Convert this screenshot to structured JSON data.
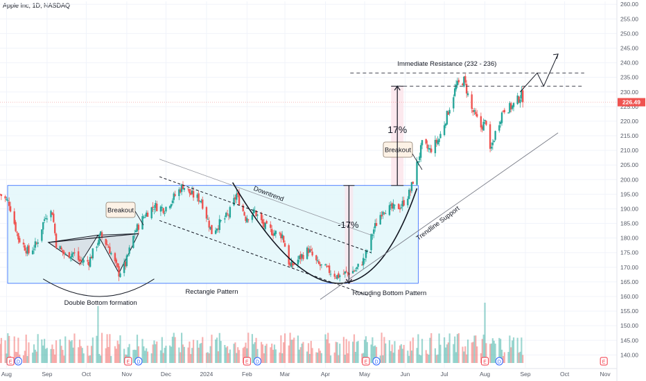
{
  "header": {
    "title": "Apple Inc, 1D, NASDAQ"
  },
  "colors": {
    "up": "#26a69a",
    "down": "#ef5350",
    "rectangle_fill": "#e3f7fa",
    "rectangle_border": "#2962ff",
    "price_badge": "#ef5350",
    "measure_band": "#fbe3ea",
    "callout_fill": "#fdf2e6"
  },
  "chart_data": {
    "type": "candlestick",
    "y_axis": {
      "min": 137,
      "max": 261,
      "ticks": [
        140,
        145,
        150,
        155,
        160,
        165,
        170,
        175,
        180,
        185,
        190,
        195,
        200,
        205,
        210,
        215,
        220,
        225,
        230,
        235,
        240,
        245,
        250,
        255,
        260
      ],
      "tick_labels": [
        "140.00",
        "145.00",
        "150.00",
        "155.00",
        "160.00",
        "165.00",
        "170.00",
        "175.00",
        "180.00",
        "185.00",
        "190.00",
        "195.00",
        "200.00",
        "205.00",
        "210.00",
        "215.00",
        "220.00",
        "225.00",
        "230.00",
        "235.00",
        "240.00",
        "245.00",
        "250.00",
        "255.00",
        "260.00"
      ]
    },
    "x_axis": {
      "start": "2023-07-27",
      "end": "2024-11-10",
      "labels": [
        {
          "date": "2023-08-01",
          "text": "Aug"
        },
        {
          "date": "2023-09-01",
          "text": "Sep"
        },
        {
          "date": "2023-10-01",
          "text": "Oct"
        },
        {
          "date": "2023-11-01",
          "text": "Nov"
        },
        {
          "date": "2023-12-01",
          "text": "Dec"
        },
        {
          "date": "2024-01-01",
          "text": "2024"
        },
        {
          "date": "2024-02-01",
          "text": "Feb"
        },
        {
          "date": "2024-03-01",
          "text": "Mar"
        },
        {
          "date": "2024-04-01",
          "text": "Apr"
        },
        {
          "date": "2024-05-01",
          "text": "May"
        },
        {
          "date": "2024-06-01",
          "text": "Jun"
        },
        {
          "date": "2024-07-01",
          "text": "Jul"
        },
        {
          "date": "2024-08-01",
          "text": "Aug"
        },
        {
          "date": "2024-09-01",
          "text": "Sep"
        },
        {
          "date": "2024-10-01",
          "text": "Oct"
        },
        {
          "date": "2024-11-01",
          "text": "Nov"
        }
      ]
    },
    "price_path": [
      [
        "2023-07-27",
        195
      ],
      [
        "2023-08-03",
        192
      ],
      [
        "2023-08-10",
        180
      ],
      [
        "2023-08-18",
        175
      ],
      [
        "2023-08-24",
        178
      ],
      [
        "2023-08-31",
        188
      ],
      [
        "2023-09-05",
        189
      ],
      [
        "2023-09-08",
        178
      ],
      [
        "2023-09-15",
        174
      ],
      [
        "2023-09-21",
        175
      ],
      [
        "2023-09-26",
        172
      ],
      [
        "2023-10-03",
        172
      ],
      [
        "2023-10-12",
        181
      ],
      [
        "2023-10-18",
        177
      ],
      [
        "2023-10-26",
        168
      ],
      [
        "2023-10-31",
        171
      ],
      [
        "2023-11-07",
        182
      ],
      [
        "2023-11-15",
        188
      ],
      [
        "2023-11-22",
        191
      ],
      [
        "2023-11-30",
        190
      ],
      [
        "2023-12-07",
        194
      ],
      [
        "2023-12-14",
        198
      ],
      [
        "2023-12-20",
        195
      ],
      [
        "2023-12-28",
        193
      ],
      [
        "2024-01-05",
        182
      ],
      [
        "2024-01-11",
        185
      ],
      [
        "2024-01-18",
        188
      ],
      [
        "2024-01-24",
        195
      ],
      [
        "2024-01-31",
        187
      ],
      [
        "2024-02-07",
        189
      ],
      [
        "2024-02-14",
        184
      ],
      [
        "2024-02-21",
        182
      ],
      [
        "2024-02-28",
        181
      ],
      [
        "2024-03-05",
        170
      ],
      [
        "2024-03-12",
        173
      ],
      [
        "2024-03-19",
        176
      ],
      [
        "2024-03-26",
        171
      ],
      [
        "2024-04-03",
        169
      ],
      [
        "2024-04-10",
        167
      ],
      [
        "2024-04-17",
        168
      ],
      [
        "2024-04-24",
        169
      ],
      [
        "2024-05-01",
        173
      ],
      [
        "2024-05-08",
        183
      ],
      [
        "2024-05-15",
        190
      ],
      [
        "2024-05-22",
        190
      ],
      [
        "2024-05-29",
        191
      ],
      [
        "2024-06-05",
        196
      ],
      [
        "2024-06-11",
        207
      ],
      [
        "2024-06-14",
        212
      ],
      [
        "2024-06-20",
        210
      ],
      [
        "2024-06-27",
        214
      ],
      [
        "2024-07-03",
        222
      ],
      [
        "2024-07-10",
        232
      ],
      [
        "2024-07-16",
        234
      ],
      [
        "2024-07-22",
        224
      ],
      [
        "2024-07-29",
        218
      ],
      [
        "2024-08-02",
        220
      ],
      [
        "2024-08-05",
        209
      ],
      [
        "2024-08-09",
        216
      ],
      [
        "2024-08-15",
        224
      ],
      [
        "2024-08-22",
        225
      ],
      [
        "2024-08-29",
        229
      ],
      [
        "2024-08-30",
        226.49
      ]
    ],
    "last_price": {
      "value": 226.49,
      "label": "226.49"
    },
    "volume_events": [
      {
        "date": "2023-08-04",
        "label": "E"
      },
      {
        "date": "2023-08-10",
        "label": "D"
      },
      {
        "date": "2023-11-02",
        "label": "E"
      },
      {
        "date": "2023-11-10",
        "label": "D"
      },
      {
        "date": "2024-02-01",
        "label": "E"
      },
      {
        "date": "2024-02-09",
        "label": "D"
      },
      {
        "date": "2024-05-02",
        "label": "E"
      },
      {
        "date": "2024-05-10",
        "label": "D"
      },
      {
        "date": "2024-08-01",
        "label": "E"
      },
      {
        "date": "2024-08-12",
        "label": "D"
      },
      {
        "date": "2024-10-31",
        "label": "E"
      }
    ]
  },
  "annotations": {
    "breakout_1": "Breakout",
    "breakout_2": "Breakout",
    "double_bottom": "Double Bottom formation",
    "rectangle_pattern": "Rectangle Pattern",
    "downtrend": "Downtrend",
    "rounding_bottom": "Rounding Bottom Pattern",
    "trendline_support": "Trendline Support",
    "immediate_resistance": "Immediate Resistance (232 - 236)",
    "measure_left": "-17%",
    "measure_right": "17%"
  },
  "drawing_levels": {
    "rectangle_top": 198,
    "rectangle_bottom": 164.5,
    "resistance_low": 232,
    "resistance_high": 236.5,
    "measure_right_top": 232,
    "measure_right_bottom": 198
  }
}
